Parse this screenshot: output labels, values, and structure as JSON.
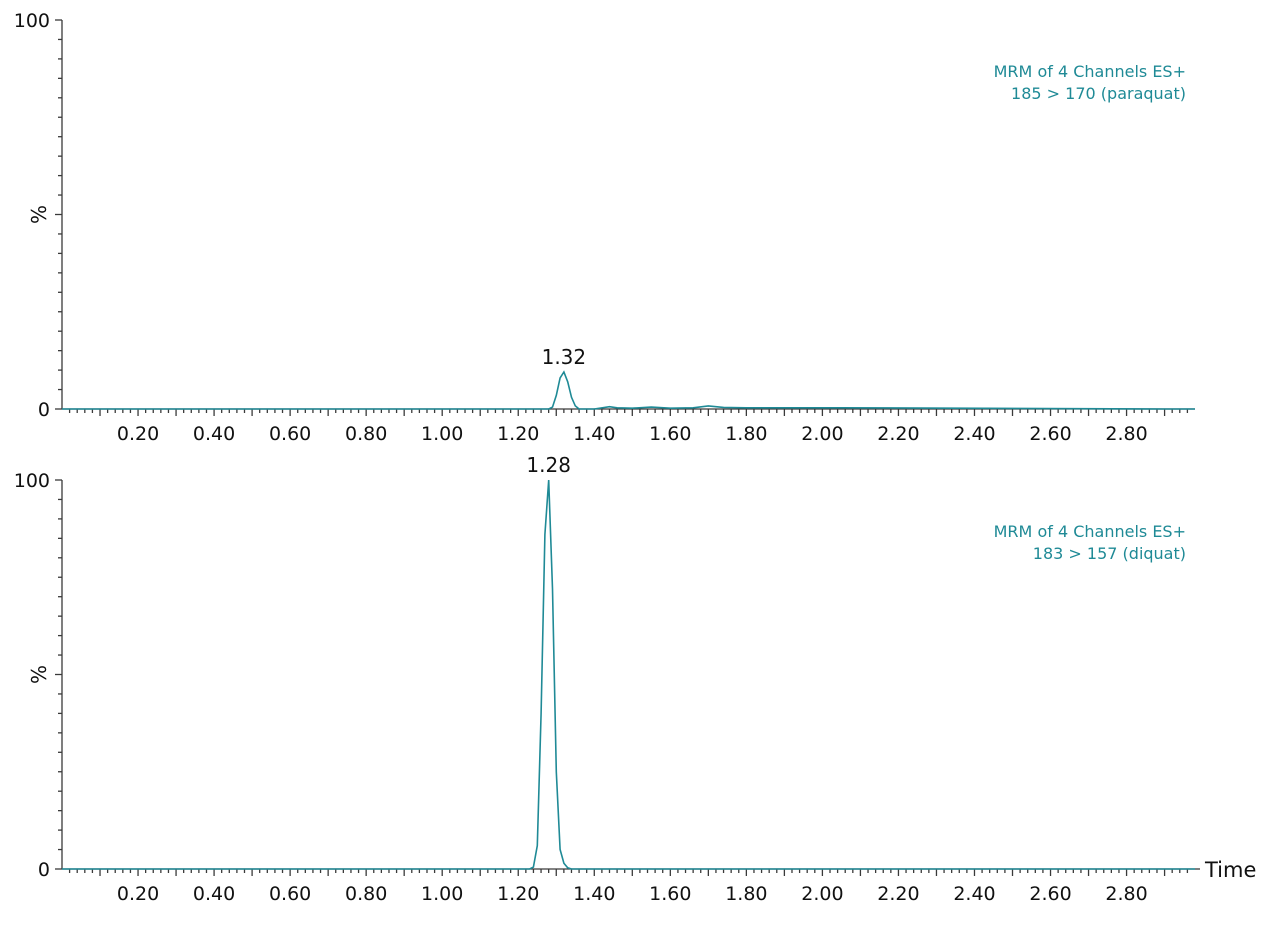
{
  "colors": {
    "trace": "#1f8a96",
    "legend": "#1f8a96",
    "axis": "#3a3a3a"
  },
  "x_axis_title": "Time",
  "chart_data": [
    {
      "type": "line",
      "title_lines": [
        "MRM of 4 Channels ES+",
        "185 > 170 (paraquat)"
      ],
      "ylabel": "%",
      "xlim": [
        0.0,
        2.98
      ],
      "ylim": [
        0,
        100
      ],
      "y_ticks": [
        "0",
        "100"
      ],
      "x_tick_labels": [
        "0.20",
        "0.40",
        "0.60",
        "0.80",
        "1.00",
        "1.20",
        "1.40",
        "1.60",
        "1.80",
        "2.00",
        "2.20",
        "2.40",
        "2.60",
        "2.80"
      ],
      "peak_label": "1.32",
      "peak_x": 1.32,
      "series": [
        {
          "x": [
            0.0,
            1.2,
            1.28,
            1.29,
            1.3,
            1.31,
            1.32,
            1.33,
            1.34,
            1.35,
            1.36,
            1.4,
            1.44,
            1.46,
            1.5,
            1.55,
            1.6,
            1.66,
            1.7,
            1.74,
            1.8,
            2.05,
            2.9,
            2.98
          ],
          "values": [
            0,
            0,
            0,
            0.5,
            3.5,
            8,
            9.5,
            7,
            3,
            0.8,
            0,
            0,
            0.6,
            0.3,
            0.2,
            0.5,
            0.2,
            0.3,
            0.8,
            0.4,
            0.3,
            0.3,
            0,
            0
          ]
        }
      ]
    },
    {
      "type": "line",
      "title_lines": [
        "MRM of 4 Channels ES+",
        "183 > 157 (diquat)"
      ],
      "ylabel": "%",
      "xlim": [
        0.0,
        2.98
      ],
      "ylim": [
        0,
        100
      ],
      "y_ticks": [
        "0",
        "100"
      ],
      "x_tick_labels": [
        "0.20",
        "0.40",
        "0.60",
        "0.80",
        "1.00",
        "1.20",
        "1.40",
        "1.60",
        "1.80",
        "2.00",
        "2.20",
        "2.40",
        "2.60",
        "2.80"
      ],
      "peak_label": "1.28",
      "peak_x": 1.28,
      "series": [
        {
          "x": [
            0.0,
            1.23,
            1.24,
            1.25,
            1.26,
            1.27,
            1.28,
            1.29,
            1.3,
            1.31,
            1.32,
            1.33,
            1.34,
            2.98
          ],
          "values": [
            0,
            0,
            0.5,
            6,
            40,
            86,
            100,
            72,
            25,
            5,
            1.5,
            0.3,
            0,
            0
          ]
        }
      ]
    }
  ]
}
